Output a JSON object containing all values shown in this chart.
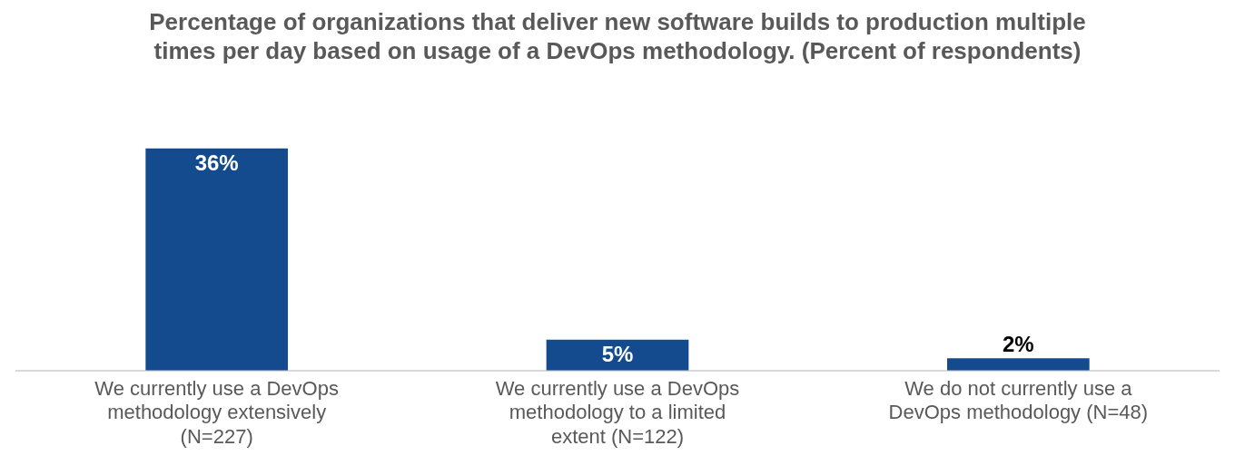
{
  "chart_data": {
    "type": "bar",
    "title": "Percentage of organizations that deliver new software builds to production multiple times per day based on usage of a DevOps methodology. (Percent of respondents)",
    "categories": [
      "We currently use a DevOps methodology extensively (N=227)",
      "We currently use a DevOps methodology to a limited extent (N=122)",
      "We do not currently use a DevOps methodology (N=48)"
    ],
    "values": [
      36,
      5,
      2
    ],
    "value_labels": [
      "36%",
      "5%",
      "2%"
    ],
    "color": "#134b8e",
    "grid": false,
    "legend": false
  }
}
